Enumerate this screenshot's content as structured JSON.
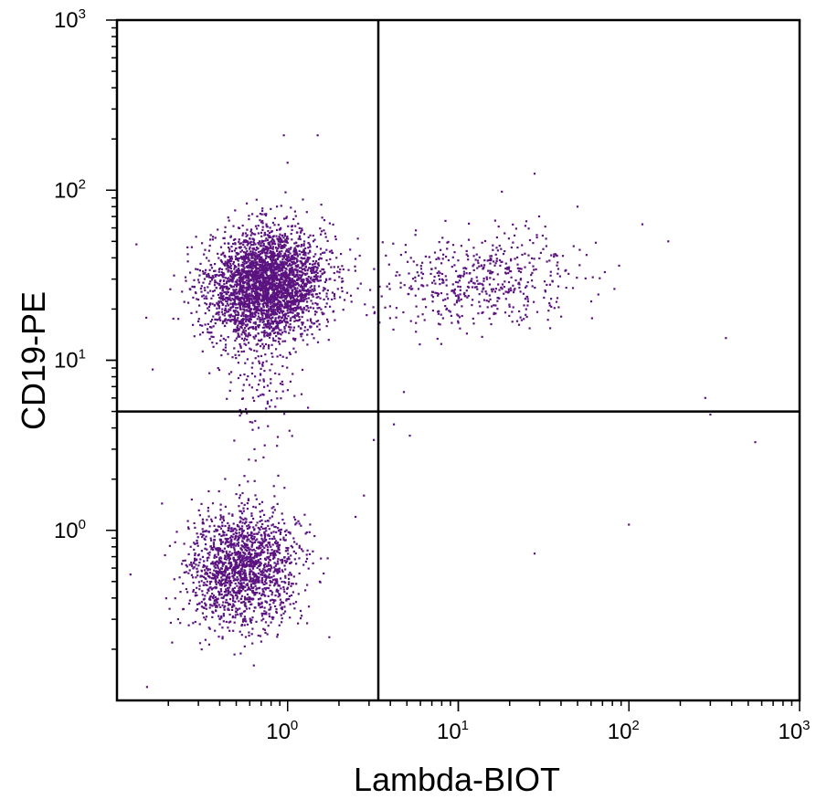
{
  "chart_data": {
    "type": "scatter",
    "title": "",
    "xlabel": "Lambda-BIOT",
    "ylabel": "CD19-PE",
    "x_scale": "log",
    "y_scale": "log",
    "xlim": [
      0.1,
      1000
    ],
    "ylim": [
      0.1,
      1000
    ],
    "x_ticks": [
      {
        "base": "10",
        "exp": "0",
        "value": 1
      },
      {
        "base": "10",
        "exp": "1",
        "value": 10
      },
      {
        "base": "10",
        "exp": "2",
        "value": 100
      },
      {
        "base": "10",
        "exp": "3",
        "value": 1000
      }
    ],
    "y_ticks": [
      {
        "base": "10",
        "exp": "0",
        "value": 1
      },
      {
        "base": "10",
        "exp": "1",
        "value": 10
      },
      {
        "base": "10",
        "exp": "2",
        "value": 100
      },
      {
        "base": "10",
        "exp": "3",
        "value": 1000
      }
    ],
    "quadrant_gates": {
      "x": 3.4,
      "y": 5.0
    },
    "point_color": "#5b1380",
    "populations": [
      {
        "name": "CD19+ Lambda- (upper-left)",
        "center": [
          0.75,
          28
        ],
        "spread_log": [
          0.17,
          0.16
        ],
        "count": 3200
      },
      {
        "name": "CD19+ Lambda+ (upper-right)",
        "center": [
          14,
          30
        ],
        "spread_log": [
          0.3,
          0.13
        ],
        "count": 520
      },
      {
        "name": "CD19- Lambda- (lower-left)",
        "center": [
          0.55,
          0.6
        ],
        "spread_log": [
          0.16,
          0.17
        ],
        "count": 1700
      },
      {
        "name": "CD19+ Lambda- low tail",
        "center": [
          0.7,
          8
        ],
        "spread_log": [
          0.12,
          0.22
        ],
        "count": 140
      }
    ],
    "outliers": [
      [
        0.95,
        210
      ],
      [
        1.5,
        210
      ],
      [
        1.0,
        145
      ],
      [
        28,
        125
      ],
      [
        18,
        98
      ],
      [
        50,
        80
      ],
      [
        120,
        63
      ],
      [
        170,
        50
      ],
      [
        370,
        13.5
      ],
      [
        280,
        6
      ],
      [
        300,
        4.8
      ],
      [
        550,
        3.3
      ],
      [
        100,
        1.08
      ],
      [
        28,
        0.73
      ],
      [
        5.2,
        3.6
      ],
      [
        4.2,
        4.2
      ],
      [
        3.2,
        3.4
      ],
      [
        0.13,
        48
      ],
      [
        0.12,
        0.55
      ],
      [
        0.15,
        0.12
      ],
      [
        4.8,
        6.5
      ],
      [
        2.5,
        1.2
      ],
      [
        2.8,
        1.6
      ]
    ]
  }
}
